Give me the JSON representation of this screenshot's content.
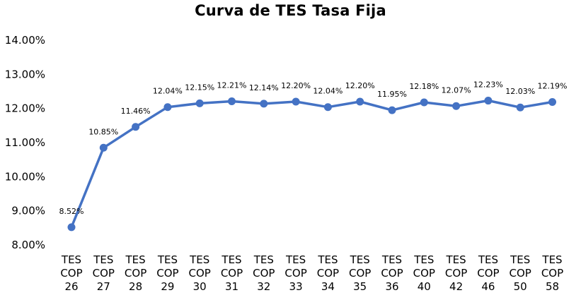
{
  "chart_data": {
    "type": "line",
    "title": "Curva de TES Tasa Fija",
    "xlabel": "",
    "ylabel": "",
    "categories": [
      [
        "TES",
        "COP",
        "26"
      ],
      [
        "TES",
        "COP",
        "27"
      ],
      [
        "TES",
        "COP",
        "28"
      ],
      [
        "TES",
        "COP",
        "29"
      ],
      [
        "TES",
        "COP",
        "30"
      ],
      [
        "TES",
        "COP",
        "31"
      ],
      [
        "TES",
        "COP",
        "32"
      ],
      [
        "TES",
        "COP",
        "33"
      ],
      [
        "TES",
        "COP",
        "34"
      ],
      [
        "TES",
        "COP",
        "35"
      ],
      [
        "TES",
        "COP",
        "36"
      ],
      [
        "TES",
        "COP",
        "40"
      ],
      [
        "TES",
        "COP",
        "42"
      ],
      [
        "TES",
        "COP",
        "46"
      ],
      [
        "TES",
        "COP",
        "50"
      ],
      [
        "TES",
        "COP",
        "58"
      ]
    ],
    "values": [
      8.52,
      10.85,
      11.46,
      12.04,
      12.15,
      12.21,
      12.14,
      12.2,
      12.04,
      12.2,
      11.95,
      12.18,
      12.07,
      12.23,
      12.03,
      12.19
    ],
    "data_labels": [
      "8.52%",
      "10.85%",
      "11.46%",
      "12.04%",
      "12.15%",
      "12.21%",
      "12.14%",
      "12.20%",
      "12.04%",
      "12.20%",
      "11.95%",
      "12.18%",
      "12.07%",
      "12.23%",
      "12.03%",
      "12.19%"
    ],
    "y_ticks": [
      {
        "value": 8,
        "label": "8.00%"
      },
      {
        "value": 9,
        "label": "9.00%"
      },
      {
        "value": 10,
        "label": "10.00%"
      },
      {
        "value": 11,
        "label": "11.00%"
      },
      {
        "value": 12,
        "label": "12.00%"
      },
      {
        "value": 13,
        "label": "13.00%"
      },
      {
        "value": 14,
        "label": "14.00%"
      }
    ],
    "ylim": [
      8,
      14
    ],
    "grid": false,
    "legend": "none",
    "line_color": "#4472C4"
  }
}
